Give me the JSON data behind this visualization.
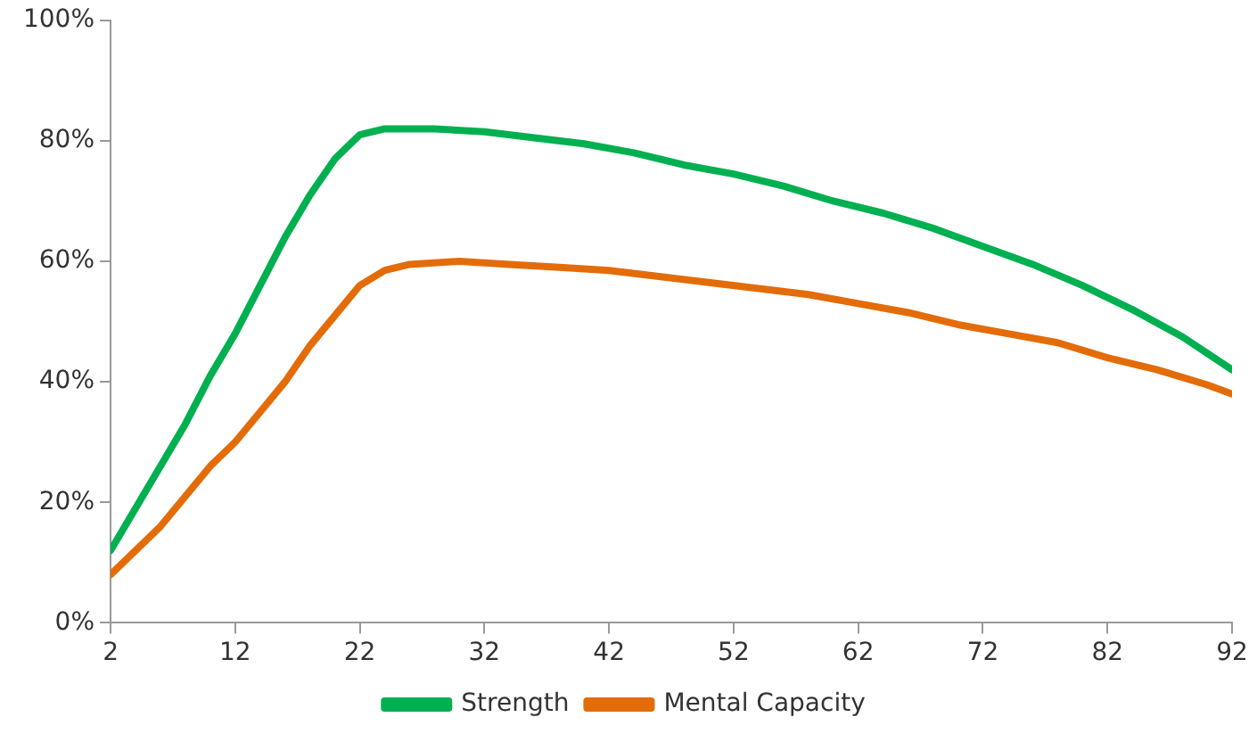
{
  "chart_data": {
    "type": "line",
    "xlim": [
      2,
      92
    ],
    "xticks": [
      2,
      12,
      22,
      32,
      42,
      52,
      62,
      72,
      82,
      92
    ],
    "ylim": [
      0,
      100
    ],
    "yticks": [
      {
        "value": 0,
        "label": "0%"
      },
      {
        "value": 20,
        "label": "20%"
      },
      {
        "value": 40,
        "label": "40%"
      },
      {
        "value": 60,
        "label": "60%"
      },
      {
        "value": 80,
        "label": "80%"
      },
      {
        "value": 100,
        "label": "100%"
      }
    ],
    "grid": false,
    "legend": "bottom",
    "marker": "none",
    "line_style": "solid",
    "series": [
      {
        "name": "Strength",
        "color": "#00b050",
        "x": [
          2,
          4,
          6,
          8,
          10,
          12,
          14,
          16,
          18,
          20,
          22,
          24,
          28,
          32,
          36,
          40,
          44,
          48,
          52,
          56,
          60,
          64,
          68,
          72,
          76,
          80,
          84,
          88,
          92
        ],
        "values": [
          12,
          19,
          26,
          33,
          41,
          48,
          56,
          64,
          71,
          77,
          81,
          82,
          82,
          81.5,
          80.5,
          79.5,
          78,
          76,
          74.5,
          72.5,
          70,
          68,
          65.5,
          62.5,
          59.5,
          56,
          52,
          47.5,
          42
        ]
      },
      {
        "name": "Mental Capacity",
        "color": "#e36c09",
        "x": [
          2,
          4,
          6,
          8,
          10,
          12,
          14,
          16,
          18,
          20,
          22,
          24,
          26,
          30,
          34,
          38,
          42,
          46,
          50,
          54,
          58,
          62,
          66,
          70,
          74,
          78,
          82,
          86,
          90,
          92
        ],
        "values": [
          8,
          12,
          16,
          21,
          26,
          30,
          35,
          40,
          46,
          51,
          56,
          58.5,
          59.5,
          60,
          59.5,
          59,
          58.5,
          57.5,
          56.5,
          55.5,
          54.5,
          53,
          51.5,
          49.5,
          48,
          46.5,
          44,
          42,
          39.5,
          38
        ]
      }
    ]
  }
}
